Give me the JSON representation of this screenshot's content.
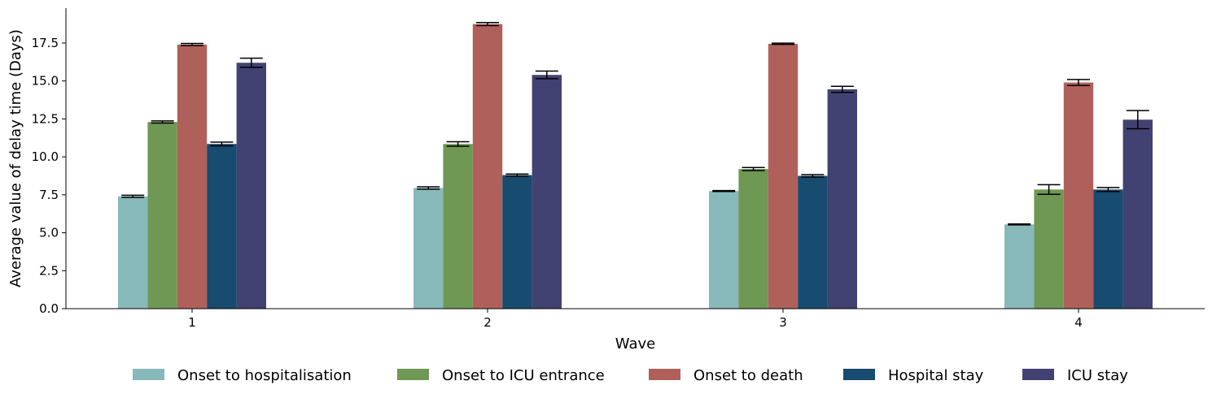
{
  "chart_data": {
    "type": "bar",
    "title": "",
    "xlabel": "Wave",
    "ylabel": "Average value of delay time (Days)",
    "categories": [
      "1",
      "2",
      "3",
      "4"
    ],
    "ylim": [
      0,
      19.8
    ],
    "yticks": [
      "0.0",
      "2.5",
      "5.0",
      "7.5",
      "10.0",
      "12.5",
      "15.0",
      "17.5"
    ],
    "legend_position": "bottom",
    "series": [
      {
        "name": "Onset to hospitalisation",
        "color": "#88b9ba",
        "values": [
          7.4,
          7.95,
          7.75,
          5.55
        ],
        "errors": [
          0.07,
          0.08,
          0.03,
          0.03
        ]
      },
      {
        "name": "Onset to ICU entrance",
        "color": "#6e9854",
        "values": [
          12.3,
          10.85,
          9.2,
          7.85
        ],
        "errors": [
          0.07,
          0.15,
          0.1,
          0.32
        ]
      },
      {
        "name": "Onset to death",
        "color": "#b0605a",
        "values": [
          17.4,
          18.75,
          17.45,
          14.9
        ],
        "errors": [
          0.07,
          0.1,
          0.04,
          0.2
        ]
      },
      {
        "name": "Hospital stay",
        "color": "#174b6f",
        "values": [
          10.85,
          8.8,
          8.75,
          7.85
        ],
        "errors": [
          0.12,
          0.07,
          0.08,
          0.13
        ]
      },
      {
        "name": "ICU stay",
        "color": "#424272",
        "values": [
          16.2,
          15.4,
          14.45,
          12.45
        ],
        "errors": [
          0.3,
          0.25,
          0.2,
          0.6
        ]
      }
    ]
  }
}
